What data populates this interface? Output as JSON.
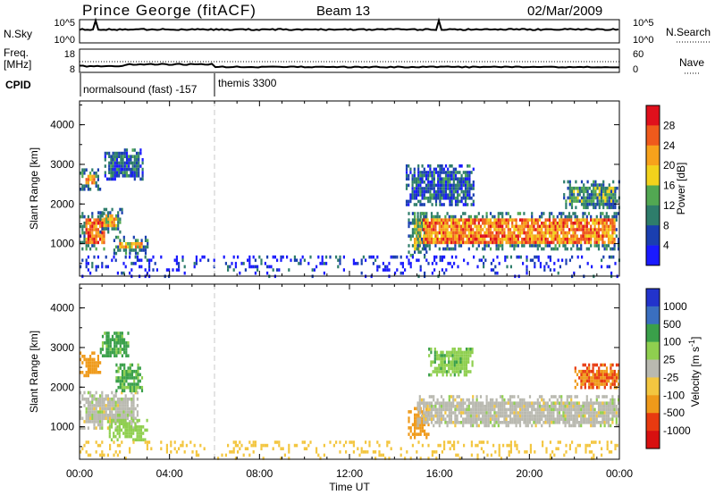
{
  "header": {
    "station": "Prince George (fitACF)",
    "beam": "Beam 13",
    "date": "02/Mar/2009"
  },
  "status_panels": {
    "nsky_label": "N.Sky",
    "nsky_ticks": [
      "10^5",
      "10^0"
    ],
    "nsearch_label": "N.Search",
    "nsearch_ticks": [
      "10^5",
      "10^0"
    ],
    "freq_label_line1": "Freq.",
    "freq_label_line2": "[MHz]",
    "freq_ticks": [
      "18",
      "8"
    ],
    "nave_label": "Nave",
    "nave_ticks": [
      "60",
      "0"
    ],
    "cpid_label": "CPID",
    "cpid_entries": [
      {
        "text": "normalsound (fast) -157",
        "time_h": 0.0
      },
      {
        "text": "themis 3300",
        "time_h": 6.0
      }
    ]
  },
  "time_axis": {
    "label": "Time UT",
    "ticks": [
      "00:00",
      "04:00",
      "08:00",
      "12:00",
      "16:00",
      "20:00",
      "00:00"
    ],
    "range_h": [
      0,
      24
    ]
  },
  "colors": {
    "power_scale": [
      "#1a1aff",
      "#1a3fb0",
      "#2e7d6b",
      "#52a852",
      "#f2d21c",
      "#f7a21b",
      "#ef5a1c",
      "#e0101c"
    ],
    "velocity_scale": [
      "#2233cc",
      "#3a6fc0",
      "#3aa04a",
      "#8fcf4f",
      "#b9b9b0",
      "#f3c640",
      "#ef9a1a",
      "#e83a10",
      "#d81010"
    ],
    "ground_scatter": "#bcbcb4"
  },
  "chart_data": [
    {
      "type": "heatmap",
      "title": "",
      "xlabel": "Time UT",
      "ylabel": "Slant Range [km]",
      "xlim": [
        0,
        24
      ],
      "ylim": [
        180,
        4600
      ],
      "yticks": [
        "1000",
        "2000",
        "3000",
        "4000"
      ],
      "colorbar_label": "Power [dB]",
      "colorbar_ticks": [
        "4",
        "8",
        "12",
        "16",
        "20",
        "24",
        "28"
      ],
      "colorbar_range": [
        0,
        30
      ],
      "regions": [
        {
          "t0": 0.0,
          "t1": 1.3,
          "r0": 900,
          "r1": 1800,
          "level": 24
        },
        {
          "t0": 0.0,
          "t1": 0.9,
          "r0": 2400,
          "r1": 2900,
          "level": 22
        },
        {
          "t0": 0.8,
          "t1": 1.9,
          "r0": 1300,
          "r1": 1900,
          "level": 18
        },
        {
          "t0": 1.1,
          "t1": 2.8,
          "r0": 2600,
          "r1": 3400,
          "level": 8
        },
        {
          "t0": 1.5,
          "t1": 3.0,
          "r0": 750,
          "r1": 1200,
          "level": 20
        },
        {
          "t0": 14.6,
          "t1": 15.4,
          "r0": 700,
          "r1": 1800,
          "level": 16
        },
        {
          "t0": 15.0,
          "t1": 24.0,
          "r0": 900,
          "r1": 1800,
          "level": 22
        },
        {
          "t0": 14.5,
          "t1": 17.5,
          "r0": 2000,
          "r1": 3000,
          "level": 7
        },
        {
          "t0": 21.5,
          "t1": 24.0,
          "r0": 1900,
          "r1": 2600,
          "level": 12
        },
        {
          "t0": 0.0,
          "t1": 24.0,
          "r0": 180,
          "r1": 700,
          "level": 3,
          "sparse": true
        }
      ]
    },
    {
      "type": "heatmap",
      "title": "",
      "xlabel": "Time UT",
      "ylabel": "Slant Range [km]",
      "xlim": [
        0,
        24
      ],
      "ylim": [
        180,
        4600
      ],
      "yticks": [
        "1000",
        "2000",
        "3000",
        "4000"
      ],
      "colorbar_label": "Velocity [m s^-1]",
      "colorbar_ticks": [
        "1000",
        "500",
        "100",
        "25",
        "-25",
        "-100",
        "-500",
        "-1000"
      ],
      "colorbar_range": [
        -1200,
        1200
      ],
      "regions": [
        {
          "t0": 0.0,
          "t1": 2.6,
          "r0": 1000,
          "r1": 1900,
          "level": 0
        },
        {
          "t0": 0.0,
          "t1": 0.9,
          "r0": 2300,
          "r1": 2900,
          "level": -300
        },
        {
          "t0": 0.9,
          "t1": 2.2,
          "r0": 2800,
          "r1": 3400,
          "level": 150
        },
        {
          "t0": 1.6,
          "t1": 2.8,
          "r0": 1900,
          "r1": 2600,
          "level": 120
        },
        {
          "t0": 1.3,
          "t1": 3.0,
          "r0": 700,
          "r1": 1200,
          "level": 60
        },
        {
          "t0": 14.6,
          "t1": 15.5,
          "r0": 700,
          "r1": 1500,
          "level": -250
        },
        {
          "t0": 15.0,
          "t1": 24.0,
          "r0": 1000,
          "r1": 1800,
          "level": 0
        },
        {
          "t0": 15.5,
          "t1": 17.5,
          "r0": 2300,
          "r1": 3000,
          "level": 80
        },
        {
          "t0": 22.0,
          "t1": 24.0,
          "r0": 2000,
          "r1": 2600,
          "level": -500
        },
        {
          "t0": 0.0,
          "t1": 24.0,
          "r0": 180,
          "r1": 650,
          "level": -60,
          "sparse": true
        }
      ]
    }
  ]
}
